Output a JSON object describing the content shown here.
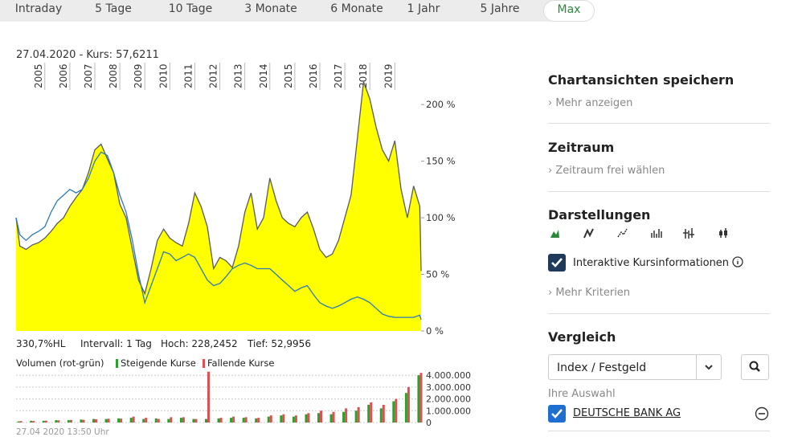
{
  "tabs": [
    "Intraday",
    "5 Tage",
    "10 Tage",
    "3 Monate",
    "6 Monate",
    "1 Jahr",
    "5 Jahre",
    "Max"
  ],
  "active_tab": 7,
  "chart_data": [
    {
      "type": "area",
      "title": "27.04.2020  - Kurs: 57,6211",
      "stats": [
        "330,7%HL",
        "Intervall: 1 Tag",
        "Hoch: 228,2452",
        "Tief: 52,9956"
      ],
      "x": [
        2003.85,
        2004,
        2004.25,
        2004.5,
        2004.75,
        2005,
        2005.25,
        2005.5,
        2005.75,
        2006,
        2006.25,
        2006.5,
        2006.75,
        2007,
        2007.25,
        2007.5,
        2007.75,
        2008,
        2008.25,
        2008.5,
        2008.75,
        2009,
        2009.25,
        2009.5,
        2009.75,
        2010,
        2010.25,
        2010.5,
        2010.75,
        2011,
        2011.25,
        2011.5,
        2011.75,
        2012,
        2012.25,
        2012.5,
        2012.75,
        2013,
        2013.25,
        2013.5,
        2013.75,
        2014,
        2014.25,
        2014.5,
        2014.75,
        2015,
        2015.25,
        2015.5,
        2015.75,
        2016,
        2016.25,
        2016.5,
        2016.75,
        2017,
        2017.25,
        2017.5,
        2017.75,
        2018,
        2018.25,
        2018.5,
        2018.75,
        2019,
        2019.25,
        2019.5,
        2019.75,
        2020,
        2020.05
      ],
      "series": [
        {
          "color": "#ffff00",
          "line_color": "#5a5a5a",
          "values": [
            100,
            75,
            72,
            76,
            78,
            82,
            88,
            95,
            100,
            110,
            118,
            125,
            140,
            160,
            165,
            152,
            140,
            112,
            100,
            72,
            45,
            33,
            55,
            80,
            90,
            82,
            78,
            75,
            95,
            122,
            110,
            92,
            55,
            65,
            62,
            56,
            75,
            105,
            122,
            90,
            100,
            135,
            115,
            100,
            95,
            92,
            100,
            105,
            90,
            72,
            65,
            68,
            80,
            100,
            120,
            170,
            220,
            205,
            180,
            160,
            150,
            168,
            125,
            100,
            128,
            110,
            53
          ]
        },
        {
          "color": "#2b7bb9",
          "values": [
            100,
            85,
            80,
            85,
            88,
            92,
            105,
            115,
            120,
            125,
            122,
            125,
            135,
            150,
            158,
            155,
            140,
            120,
            105,
            80,
            50,
            25,
            40,
            55,
            70,
            68,
            62,
            65,
            68,
            65,
            55,
            45,
            40,
            42,
            48,
            55,
            58,
            60,
            58,
            55,
            55,
            55,
            50,
            45,
            40,
            35,
            38,
            40,
            32,
            25,
            22,
            20,
            22,
            25,
            28,
            30,
            28,
            25,
            20,
            15,
            13,
            12,
            12,
            12,
            12,
            14,
            10
          ]
        }
      ],
      "xlim": [
        2003.85,
        2020.05
      ],
      "xticks": [
        2005,
        2006,
        2007,
        2008,
        2009,
        2010,
        2011,
        2012,
        2013,
        2014,
        2015,
        2016,
        2017,
        2018,
        2019
      ],
      "ylim": [
        0,
        237
      ],
      "yticks": [
        {
          "value": 0,
          "label": "0 %"
        },
        {
          "value": 50,
          "label": "50 %"
        },
        {
          "value": 100,
          "label": "100 %"
        },
        {
          "value": 150,
          "label": "150 %"
        },
        {
          "value": 200,
          "label": "200 %"
        }
      ]
    },
    {
      "type": "bar",
      "title": "Volumen (rot-grün)",
      "x": [
        2004,
        2004.5,
        2005,
        2005.5,
        2006,
        2006.5,
        2007,
        2007.5,
        2008,
        2008.5,
        2009,
        2009.5,
        2010,
        2010.5,
        2011,
        2011.5,
        2012,
        2012.5,
        2013,
        2013.5,
        2014,
        2014.5,
        2015,
        2015.5,
        2016,
        2016.5,
        2017,
        2017.5,
        2018,
        2018.5,
        2019,
        2019.5,
        2020
      ],
      "series": [
        {
          "name": "Steigende Kurse",
          "color": "#2ca02c",
          "values": [
            100000,
            150000,
            150000,
            200000,
            200000,
            250000,
            300000,
            300000,
            350000,
            400000,
            300000,
            350000,
            300000,
            400000,
            300000,
            300000,
            350000,
            400000,
            400000,
            350000,
            500000,
            600000,
            500000,
            700000,
            800000,
            700000,
            900000,
            1000000,
            1500000,
            1200000,
            1800000,
            2500000,
            4000000
          ]
        },
        {
          "name": "Fallende Kurse",
          "color": "#e05050",
          "values": [
            120000,
            130000,
            160000,
            180000,
            220000,
            230000,
            280000,
            320000,
            330000,
            500000,
            400000,
            300000,
            450000,
            450000,
            300000,
            4300000,
            400000,
            500000,
            450000,
            400000,
            600000,
            700000,
            600000,
            800000,
            1000000,
            900000,
            1200000,
            1300000,
            1700000,
            1500000,
            2000000,
            3000000,
            4200000
          ]
        }
      ],
      "xlim": [
        2003.85,
        2020.05
      ],
      "ylim": [
        0,
        4350000
      ],
      "yticks": [
        0,
        {
          "value": 1000000,
          "label": "1.000.000"
        },
        {
          "value": 2000000,
          "label": "2.000.000"
        },
        {
          "value": 3000000,
          "label": "3.000.000"
        },
        {
          "value": 4000000,
          "label": "4.000.000"
        }
      ],
      "timestamp": "27.04 2020 13:50 Uhr"
    }
  ],
  "sidebar": {
    "save": {
      "title": "Chartansichten speichern",
      "link": "Mehr anzeigen"
    },
    "period": {
      "title": "Zeitraum",
      "link": "Zeitraum frei wählen"
    },
    "display": {
      "title": "Darstellungen",
      "checkbox": "Interaktive Kursinformationen",
      "link": "Mehr Kriterien"
    },
    "compare": {
      "title": "Vergleich",
      "select": "Index / Festgeld",
      "selection_label": "Ihre Auswahl",
      "selected": "DEUTSCHE BANK AG"
    }
  }
}
